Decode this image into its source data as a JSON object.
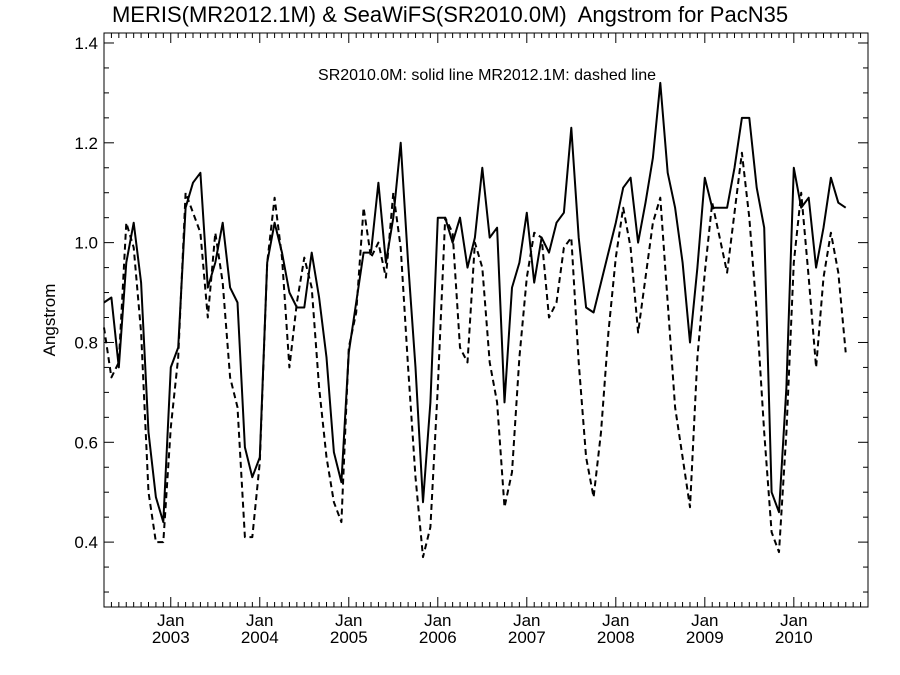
{
  "chart_data": {
    "type": "line",
    "title": "MERIS(MR2012.1M) & SeaWiFS(SR2010.0M)  Angstrom for PacN35",
    "annotation": "SR2010.0M: solid line   MR2012.1M: dashed line",
    "xlabel": "",
    "ylabel": "Angstrom",
    "xlim": [
      "2002-04",
      "2010-11"
    ],
    "ylim": [
      0.27,
      1.42
    ],
    "yticks": [
      "0.4",
      "0.6",
      "0.8",
      "1.0",
      "1.2",
      "1.4"
    ],
    "xticks": [
      {
        "month": "Jan",
        "year": "2003",
        "date": "2003-01"
      },
      {
        "month": "Jan",
        "year": "2004",
        "date": "2004-01"
      },
      {
        "month": "Jan",
        "year": "2005",
        "date": "2005-01"
      },
      {
        "month": "Jan",
        "year": "2006",
        "date": "2006-01"
      },
      {
        "month": "Jan",
        "year": "2007",
        "date": "2007-01"
      },
      {
        "month": "Jan",
        "year": "2008",
        "date": "2008-01"
      },
      {
        "month": "Jan",
        "year": "2009",
        "date": "2009-01"
      },
      {
        "month": "Jan",
        "year": "2010",
        "date": "2010-01"
      }
    ],
    "grid": false,
    "series": [
      {
        "name": "SR2010.0M",
        "style": "solid",
        "color": "#000000",
        "points": [
          [
            "2002-04",
            0.88
          ],
          [
            "2002-05",
            0.89
          ],
          [
            "2002-06",
            0.75
          ],
          [
            "2002-07",
            0.96
          ],
          [
            "2002-08",
            1.04
          ],
          [
            "2002-09",
            0.92
          ],
          [
            "2002-10",
            0.62
          ],
          [
            "2002-11",
            0.49
          ],
          [
            "2002-12",
            0.44
          ],
          [
            "2003-01",
            0.75
          ],
          [
            "2003-02",
            0.79
          ],
          [
            "2003-03",
            1.07
          ],
          [
            "2003-04",
            1.12
          ],
          [
            "2003-05",
            1.14
          ],
          [
            "2003-06",
            0.91
          ],
          [
            "2003-07",
            0.96
          ],
          [
            "2003-08",
            1.04
          ],
          [
            "2003-09",
            0.91
          ],
          [
            "2003-10",
            0.88
          ],
          [
            "2003-11",
            0.59
          ],
          [
            "2003-12",
            0.53
          ],
          [
            "2004-01",
            0.57
          ],
          [
            "2004-02",
            0.96
          ],
          [
            "2004-03",
            1.04
          ],
          [
            "2004-04",
            0.98
          ],
          [
            "2004-05",
            0.9
          ],
          [
            "2004-06",
            0.87
          ],
          [
            "2004-07",
            0.87
          ],
          [
            "2004-08",
            0.98
          ],
          [
            "2004-09",
            0.89
          ],
          [
            "2004-10",
            0.77
          ],
          [
            "2004-11",
            0.58
          ],
          [
            "2004-12",
            0.52
          ],
          [
            "2005-01",
            0.78
          ],
          [
            "2005-02",
            0.88
          ],
          [
            "2005-03",
            0.98
          ],
          [
            "2005-04",
            0.98
          ],
          [
            "2005-05",
            1.12
          ],
          [
            "2005-06",
            0.96
          ],
          [
            "2005-07",
            1.05
          ],
          [
            "2005-08",
            1.2
          ],
          [
            "2005-09",
            0.96
          ],
          [
            "2005-10",
            0.75
          ],
          [
            "2005-11",
            0.48
          ],
          [
            "2005-12",
            0.68
          ],
          [
            "2006-01",
            1.05
          ],
          [
            "2006-02",
            1.05
          ],
          [
            "2006-03",
            1.0
          ],
          [
            "2006-04",
            1.05
          ],
          [
            "2006-05",
            0.95
          ],
          [
            "2006-06",
            1.01
          ],
          [
            "2006-07",
            1.15
          ],
          [
            "2006-08",
            1.01
          ],
          [
            "2006-09",
            1.03
          ],
          [
            "2006-10",
            0.68
          ],
          [
            "2006-11",
            0.91
          ],
          [
            "2006-12",
            0.96
          ],
          [
            "2007-01",
            1.06
          ],
          [
            "2007-02",
            0.92
          ],
          [
            "2007-03",
            1.01
          ],
          [
            "2007-04",
            0.98
          ],
          [
            "2007-05",
            1.04
          ],
          [
            "2007-06",
            1.06
          ],
          [
            "2007-07",
            1.23
          ],
          [
            "2007-08",
            1.01
          ],
          [
            "2007-09",
            0.87
          ],
          [
            "2007-10",
            0.86
          ],
          [
            "2007-11",
            0.92
          ],
          [
            "2007-12",
            0.98
          ],
          [
            "2008-01",
            1.04
          ],
          [
            "2008-02",
            1.11
          ],
          [
            "2008-03",
            1.13
          ],
          [
            "2008-04",
            1.0
          ],
          [
            "2008-05",
            1.08
          ],
          [
            "2008-06",
            1.17
          ],
          [
            "2008-07",
            1.32
          ],
          [
            "2008-08",
            1.14
          ],
          [
            "2008-09",
            1.07
          ],
          [
            "2008-10",
            0.96
          ],
          [
            "2008-11",
            0.8
          ],
          [
            "2008-12",
            0.95
          ],
          [
            "2009-01",
            1.13
          ],
          [
            "2009-02",
            1.07
          ],
          [
            "2009-03",
            1.07
          ],
          [
            "2009-04",
            1.07
          ],
          [
            "2009-05",
            1.15
          ],
          [
            "2009-06",
            1.25
          ],
          [
            "2009-07",
            1.25
          ],
          [
            "2009-08",
            1.11
          ],
          [
            "2009-09",
            1.03
          ],
          [
            "2009-10",
            0.5
          ],
          [
            "2009-11",
            0.46
          ],
          [
            "2009-12",
            0.71
          ],
          [
            "2010-01",
            1.15
          ],
          [
            "2010-02",
            1.07
          ],
          [
            "2010-03",
            1.09
          ],
          [
            "2010-04",
            0.95
          ],
          [
            "2010-05",
            1.03
          ],
          [
            "2010-06",
            1.13
          ],
          [
            "2010-07",
            1.08
          ],
          [
            "2010-08",
            1.07
          ]
        ]
      },
      {
        "name": "MR2012.1M",
        "style": "dashed",
        "color": "#000000",
        "points": [
          [
            "2002-04",
            0.83
          ],
          [
            "2002-05",
            0.73
          ],
          [
            "2002-06",
            0.76
          ],
          [
            "2002-07",
            1.04
          ],
          [
            "2002-08",
            0.99
          ],
          [
            "2002-09",
            0.82
          ],
          [
            "2002-10",
            0.5
          ],
          [
            "2002-11",
            0.4
          ],
          [
            "2002-12",
            0.4
          ],
          [
            "2003-01",
            0.63
          ],
          [
            "2003-02",
            0.77
          ],
          [
            "2003-03",
            1.1
          ],
          [
            "2003-04",
            1.06
          ],
          [
            "2003-05",
            1.02
          ],
          [
            "2003-06",
            0.85
          ],
          [
            "2003-07",
            1.02
          ],
          [
            "2003-08",
            0.92
          ],
          [
            "2003-09",
            0.73
          ],
          [
            "2003-10",
            0.67
          ],
          [
            "2003-11",
            0.41
          ],
          [
            "2003-12",
            0.41
          ],
          [
            "2004-01",
            0.56
          ],
          [
            "2004-02",
            0.96
          ],
          [
            "2004-03",
            1.09
          ],
          [
            "2004-04",
            0.97
          ],
          [
            "2004-05",
            0.75
          ],
          [
            "2004-06",
            0.88
          ],
          [
            "2004-07",
            0.97
          ],
          [
            "2004-08",
            0.91
          ],
          [
            "2004-09",
            0.71
          ],
          [
            "2004-10",
            0.57
          ],
          [
            "2004-11",
            0.48
          ],
          [
            "2004-12",
            0.44
          ],
          [
            "2005-01",
            0.79
          ],
          [
            "2005-02",
            0.86
          ],
          [
            "2005-03",
            1.07
          ],
          [
            "2005-04",
            0.97
          ],
          [
            "2005-05",
            1.0
          ],
          [
            "2005-06",
            0.93
          ],
          [
            "2005-07",
            1.1
          ],
          [
            "2005-08",
            0.99
          ],
          [
            "2005-09",
            0.75
          ],
          [
            "2005-10",
            0.53
          ],
          [
            "2005-11",
            0.37
          ],
          [
            "2005-12",
            0.43
          ],
          [
            "2006-01",
            0.71
          ],
          [
            "2006-02",
            1.05
          ],
          [
            "2006-03",
            1.02
          ],
          [
            "2006-04",
            0.79
          ],
          [
            "2006-05",
            0.76
          ],
          [
            "2006-06",
            1.0
          ],
          [
            "2006-07",
            0.95
          ],
          [
            "2006-08",
            0.76
          ],
          [
            "2006-09",
            0.68
          ],
          [
            "2006-10",
            0.47
          ],
          [
            "2006-11",
            0.54
          ],
          [
            "2006-12",
            0.77
          ],
          [
            "2007-01",
            0.93
          ],
          [
            "2007-02",
            1.02
          ],
          [
            "2007-03",
            1.01
          ],
          [
            "2007-04",
            0.85
          ],
          [
            "2007-05",
            0.88
          ],
          [
            "2007-06",
            0.99
          ],
          [
            "2007-07",
            1.01
          ],
          [
            "2007-08",
            0.76
          ],
          [
            "2007-09",
            0.57
          ],
          [
            "2007-10",
            0.49
          ],
          [
            "2007-11",
            0.62
          ],
          [
            "2007-12",
            0.82
          ],
          [
            "2008-01",
            0.97
          ],
          [
            "2008-02",
            1.07
          ],
          [
            "2008-03",
            0.99
          ],
          [
            "2008-04",
            0.82
          ],
          [
            "2008-05",
            0.93
          ],
          [
            "2008-06",
            1.04
          ],
          [
            "2008-07",
            1.09
          ],
          [
            "2008-08",
            0.88
          ],
          [
            "2008-09",
            0.67
          ],
          [
            "2008-10",
            0.57
          ],
          [
            "2008-11",
            0.47
          ],
          [
            "2008-12",
            0.77
          ],
          [
            "2009-01",
            0.94
          ],
          [
            "2009-02",
            1.08
          ],
          [
            "2009-03",
            1.01
          ],
          [
            "2009-04",
            0.94
          ],
          [
            "2009-05",
            1.06
          ],
          [
            "2009-06",
            1.18
          ],
          [
            "2009-07",
            1.05
          ],
          [
            "2009-08",
            0.86
          ],
          [
            "2009-09",
            0.62
          ],
          [
            "2009-10",
            0.42
          ],
          [
            "2009-11",
            0.38
          ],
          [
            "2009-12",
            0.62
          ],
          [
            "2010-01",
            0.96
          ],
          [
            "2010-02",
            1.1
          ],
          [
            "2010-03",
            0.93
          ],
          [
            "2010-04",
            0.75
          ],
          [
            "2010-05",
            0.93
          ],
          [
            "2010-06",
            1.02
          ],
          [
            "2010-07",
            0.94
          ],
          [
            "2010-08",
            0.78
          ]
        ]
      }
    ]
  }
}
